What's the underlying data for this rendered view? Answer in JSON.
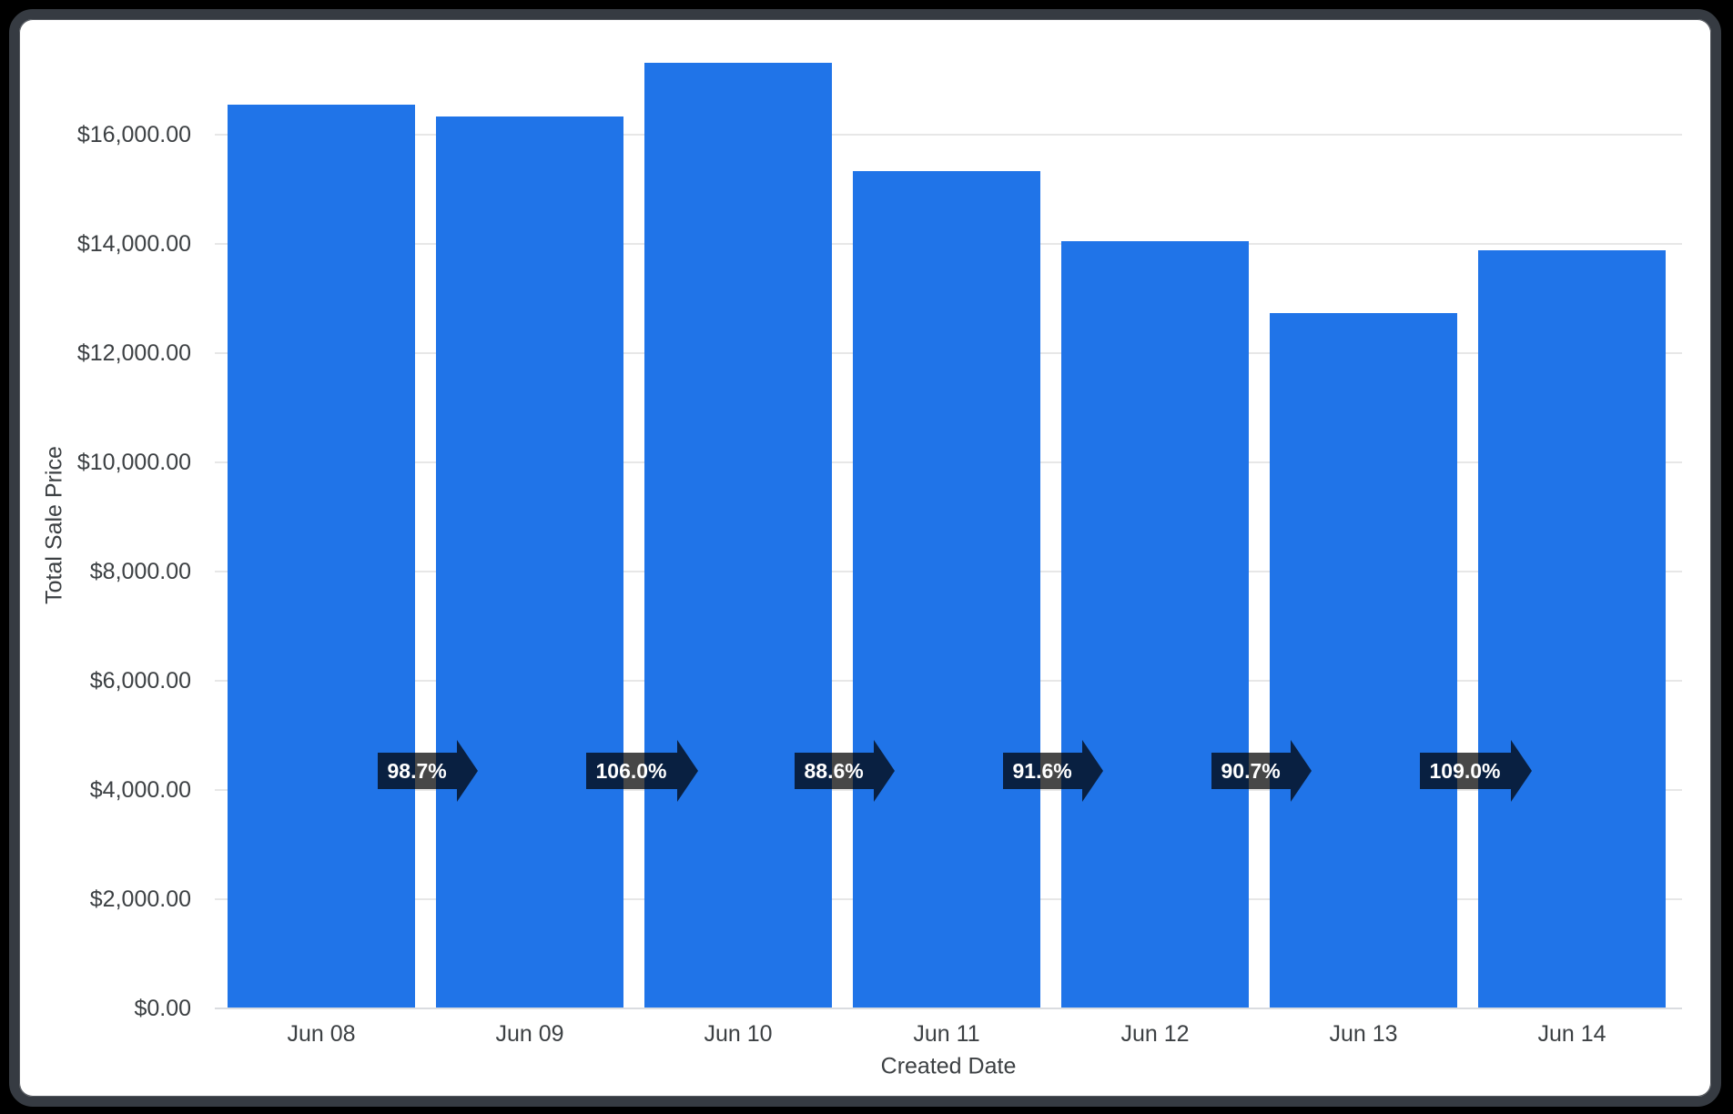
{
  "page": {
    "background_color": "#000000"
  },
  "card": {
    "background_color": "#ffffff",
    "border_color": "#363b42"
  },
  "chart_data": {
    "type": "bar",
    "title": "",
    "xlabel": "Created Date",
    "ylabel": "Total Sale Price",
    "categories": [
      "Jun 08",
      "Jun 09",
      "Jun 10",
      "Jun 11",
      "Jun 12",
      "Jun 13",
      "Jun 14"
    ],
    "values": [
      16550,
      16330,
      17310,
      15340,
      14050,
      12740,
      13890
    ],
    "value_unit": "USD",
    "bar_color": "#2074e8",
    "ylim": [
      0,
      17333
    ],
    "ytick_interval": 2000,
    "ytick_labels": [
      "$0.00",
      "$2,000.00",
      "$4,000.00",
      "$6,000.00",
      "$8,000.00",
      "$10,000.00",
      "$12,000.00",
      "$14,000.00",
      "$16,000.00"
    ],
    "grid": true,
    "legend_position": "none",
    "period_over_period_badges": {
      "description": "percent of previous bar, shown as right-arrow between adjacent bars",
      "labels": [
        "98.7%",
        "106.0%",
        "88.6%",
        "91.6%",
        "90.7%",
        "109.0%"
      ],
      "background_color": "rgba(0,0,0,0.72)",
      "text_color": "#ffffff",
      "shape": "right-arrow"
    },
    "text_color": "#3c4043",
    "gridline_color": "#e7e7e7"
  }
}
